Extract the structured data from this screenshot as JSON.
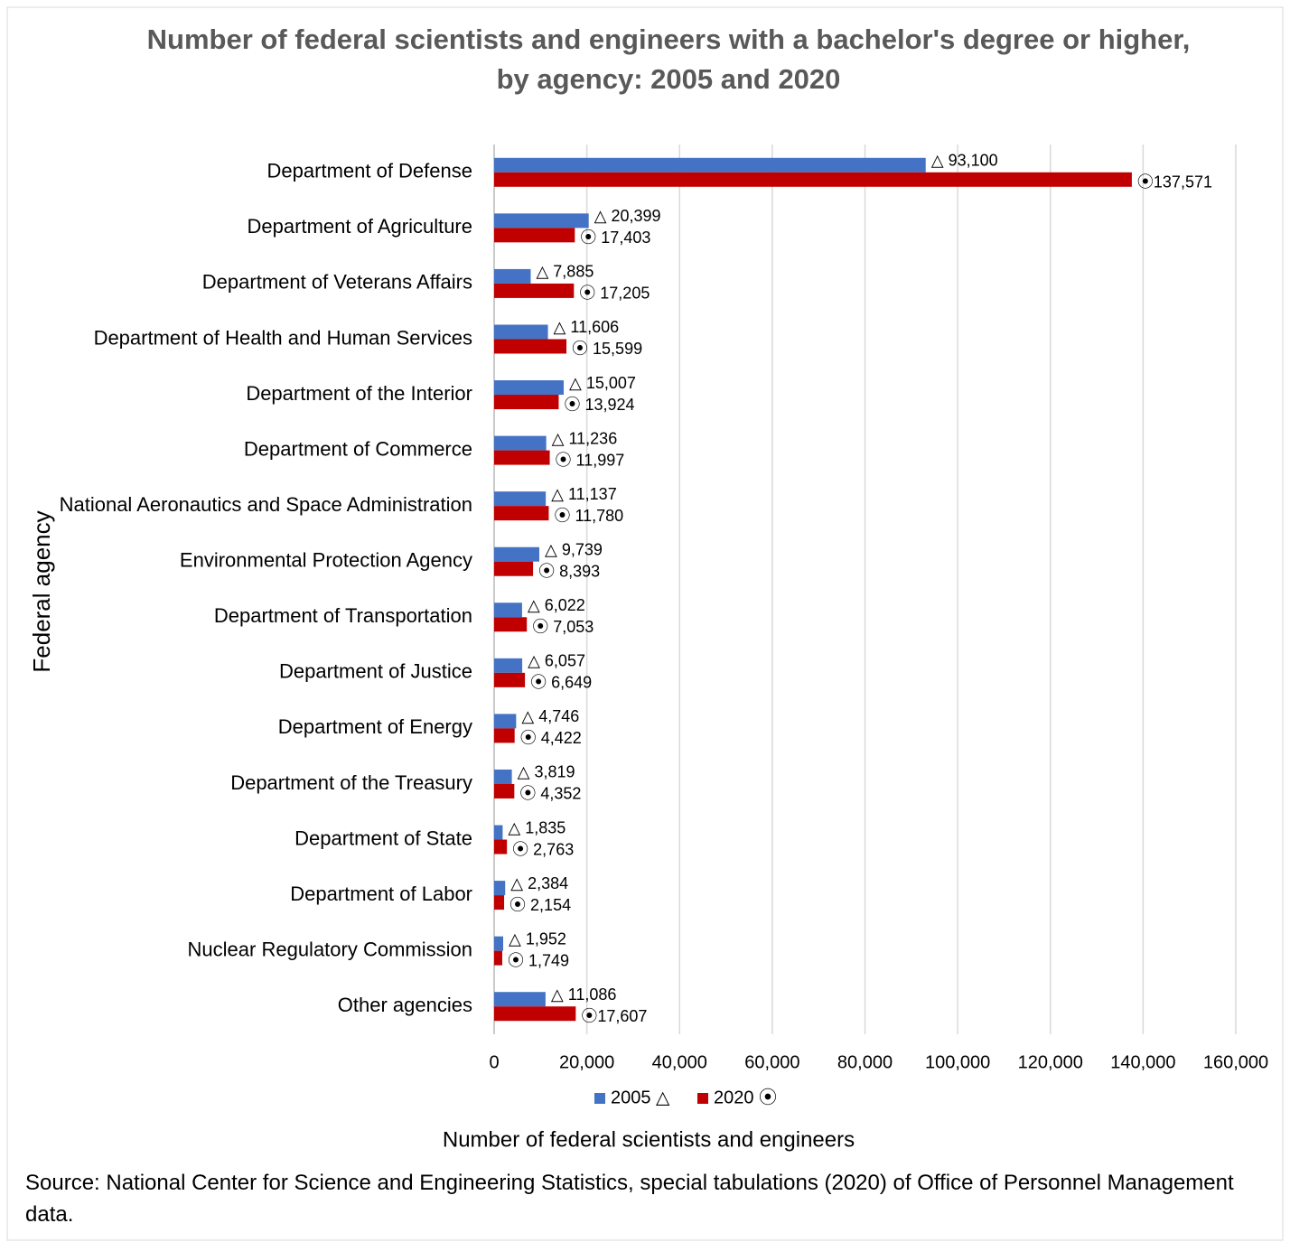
{
  "chart_data": {
    "type": "hbar",
    "title": "Number of federal scientists and engineers with a bachelor's degree or higher, by agency: 2005 and 2020",
    "y_label": "Federal agency",
    "x_label": "Number of federal scientists and engineers",
    "source": "Source: National Center for Science and Engineering Statistics, special tabulations (2020) of Office of Personnel Management data.",
    "categories": [
      "Department of Defense",
      "Department of Agriculture",
      "Department of Veterans Affairs",
      "Department of Health and Human Services",
      "Department of the Interior",
      "Department of Commerce",
      "National Aeronautics and Space Administration",
      "Environmental Protection Agency",
      "Department of Transportation",
      "Department of Justice",
      "Department of Energy",
      "Department of the Treasury",
      "Department of State",
      "Department of Labor",
      "Nuclear Regulatory Commission",
      "Other agencies"
    ],
    "series": [
      {
        "name": "2005 △",
        "color": "#4472c4",
        "values": [
          93100,
          20399,
          7885,
          11606,
          15007,
          11236,
          11137,
          9739,
          6022,
          6057,
          4746,
          3819,
          1835,
          2384,
          1952,
          11086
        ],
        "value_labels": [
          "△ 93,100",
          "△ 20,399",
          "△ 7,885",
          "△ 11,606",
          "△ 15,007",
          "△ 11,236",
          "△ 11,137",
          "△ 9,739",
          "△ 6,022",
          "△ 6,057",
          "△ 4,746",
          "△ 3,819",
          "△ 1,835",
          "△ 2,384",
          "△ 1,952",
          "△ 11,086"
        ]
      },
      {
        "name": "2020 ⦿",
        "color": "#c00000",
        "values": [
          137571,
          17403,
          17205,
          15599,
          13924,
          11997,
          11780,
          8393,
          7053,
          6649,
          4422,
          4352,
          2763,
          2154,
          1749,
          17607
        ],
        "value_labels": [
          "⦿137,571",
          "⦿ 17,403",
          "⦿ 17,205",
          "⦿ 15,599",
          "⦿ 13,924",
          "⦿ 11,997",
          "⦿ 11,780",
          "⦿ 8,393",
          "⦿ 7,053",
          "⦿ 6,649",
          "⦿ 4,422",
          "⦿ 4,352",
          "⦿ 2,763",
          "⦿ 2,154",
          "⦿ 1,749",
          "⦿17,607"
        ]
      }
    ],
    "xlim": [
      0,
      160000
    ],
    "xticks": [
      0,
      {
        "value": 20000,
        "label": "20,000"
      },
      {
        "value": 40000,
        "label": "40,000"
      },
      {
        "value": 60000,
        "label": "60,000"
      },
      {
        "value": 80000,
        "label": "80,000"
      },
      {
        "value": 100000,
        "label": "100,000"
      },
      {
        "value": 120000,
        "label": "120,000"
      },
      {
        "value": 140000,
        "label": "140,000"
      },
      {
        "value": 160000,
        "label": "160,000"
      }
    ],
    "grid": true,
    "legend": "bottom"
  }
}
